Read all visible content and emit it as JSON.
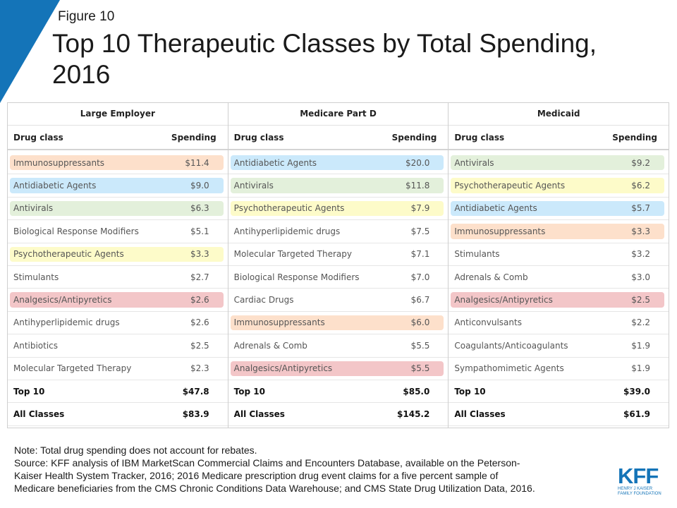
{
  "figure_label": "Figure 10",
  "title": "Top 10 Therapeutic Classes by Total Spending, 2016",
  "colors": {
    "accent": "#1474b8",
    "orange": "#fde0cb",
    "blue": "#cbe9fb",
    "green": "#e3f0db",
    "yellow": "#fdfbc9",
    "red": "#f3c6c8"
  },
  "columns": [
    {
      "header": "Large Employer",
      "drug_class_label": "Drug class",
      "spending_label": "Spending",
      "rows": [
        {
          "name": "Immunosuppressants",
          "value": "$11.4",
          "color": "orange"
        },
        {
          "name": "Antidiabetic Agents",
          "value": "$9.0",
          "color": "blue"
        },
        {
          "name": "Antivirals",
          "value": "$6.3",
          "color": "green"
        },
        {
          "name": "Biological Response Modifiers",
          "value": "$5.1",
          "color": ""
        },
        {
          "name": "Psychotherapeutic Agents",
          "value": "$3.3",
          "color": "yellow"
        },
        {
          "name": "Stimulants",
          "value": "$2.7",
          "color": ""
        },
        {
          "name": "Analgesics/Antipyretics",
          "value": "$2.6",
          "color": "red"
        },
        {
          "name": "Antihyperlipidemic drugs",
          "value": "$2.6",
          "color": ""
        },
        {
          "name": "Antibiotics",
          "value": "$2.5",
          "color": ""
        },
        {
          "name": "Molecular Targeted Therapy",
          "value": "$2.3",
          "color": ""
        },
        {
          "name": "Top 10",
          "value": "$47.8",
          "color": "",
          "bold": true
        },
        {
          "name": "All Classes",
          "value": "$83.9",
          "color": "",
          "bold": true
        }
      ]
    },
    {
      "header": "Medicare Part D",
      "drug_class_label": "Drug class",
      "spending_label": "Spending",
      "rows": [
        {
          "name": "Antidiabetic Agents",
          "value": "$20.0",
          "color": "blue"
        },
        {
          "name": "Antivirals",
          "value": "$11.8",
          "color": "green"
        },
        {
          "name": "Psychotherapeutic Agents",
          "value": "$7.9",
          "color": "yellow"
        },
        {
          "name": "Antihyperlipidemic drugs",
          "value": "$7.5",
          "color": ""
        },
        {
          "name": "Molecular Targeted Therapy",
          "value": "$7.1",
          "color": ""
        },
        {
          "name": "Biological Response Modifiers",
          "value": "$7.0",
          "color": ""
        },
        {
          "name": "Cardiac Drugs",
          "value": "$6.7",
          "color": ""
        },
        {
          "name": "Immunosuppressants",
          "value": "$6.0",
          "color": "orange"
        },
        {
          "name": "Adrenals & Comb",
          "value": "$5.5",
          "color": ""
        },
        {
          "name": "Analgesics/Antipyretics",
          "value": "$5.5",
          "color": "red"
        },
        {
          "name": "Top 10",
          "value": "$85.0",
          "color": "",
          "bold": true
        },
        {
          "name": "All Classes",
          "value": "$145.2",
          "color": "",
          "bold": true
        }
      ]
    },
    {
      "header": "Medicaid",
      "drug_class_label": "Drug class",
      "spending_label": "Spending",
      "rows": [
        {
          "name": "Antivirals",
          "value": "$9.2",
          "color": "green"
        },
        {
          "name": "Psychotherapeutic Agents",
          "value": "$6.2",
          "color": "yellow"
        },
        {
          "name": "Antidiabetic Agents",
          "value": "$5.7",
          "color": "blue"
        },
        {
          "name": "Immunosuppressants",
          "value": "$3.3",
          "color": "orange"
        },
        {
          "name": "Stimulants",
          "value": "$3.2",
          "color": ""
        },
        {
          "name": "Adrenals & Comb",
          "value": "$3.0",
          "color": ""
        },
        {
          "name": "Analgesics/Antipyretics",
          "value": "$2.5",
          "color": "red"
        },
        {
          "name": "Anticonvulsants",
          "value": "$2.2",
          "color": ""
        },
        {
          "name": "Coagulants/Anticoagulants",
          "value": "$1.9",
          "color": ""
        },
        {
          "name": "Sympathomimetic Agents",
          "value": "$1.9",
          "color": ""
        },
        {
          "name": "Top 10",
          "value": "$39.0",
          "color": "",
          "bold": true
        },
        {
          "name": "All Classes",
          "value": "$61.9",
          "color": "",
          "bold": true
        }
      ]
    }
  ],
  "note_lines": [
    "Note: Total drug spending does not account for rebates.",
    "Source: KFF analysis of IBM MarketScan Commercial Claims and Encounters  Database, available on the Peterson-",
    "Kaiser Health System Tracker, 2016; 2016 Medicare prescription drug event claims for a five percent sample of",
    "Medicare beneficiaries from the CMS Chronic Conditions Data Warehouse;  and CMS State Drug Utilization Data, 2016."
  ],
  "logo": {
    "mark": "KFF",
    "line1": "HENRY J KAISER",
    "line2": "FAMILY FOUNDATION"
  }
}
